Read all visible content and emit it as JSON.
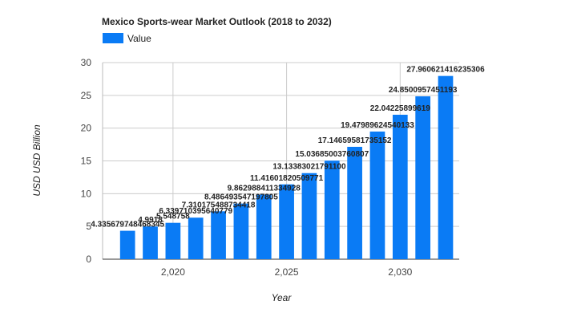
{
  "chart_data": {
    "type": "bar",
    "title": "Mexico Sports-wear Market Outlook (2018 to 2032)",
    "xlabel": "Year",
    "ylabel": "USD USD Billion",
    "legend": {
      "position": "top-left",
      "entries": [
        "Value"
      ]
    },
    "x": [
      2018,
      2019,
      2020,
      2021,
      2022,
      2023,
      2024,
      2025,
      2026,
      2027,
      2028,
      2029,
      2030,
      2031,
      2032
    ],
    "x_tick_values": [
      2020,
      2025,
      2030
    ],
    "x_tick_labels": [
      "2,020",
      "2,025",
      "2,030"
    ],
    "xlim": [
      2016.9,
      2032.6
    ],
    "ylim": [
      0,
      30
    ],
    "y_ticks": [
      0,
      5,
      10,
      15,
      20,
      25,
      30
    ],
    "grid": true,
    "series": [
      {
        "name": "Value",
        "color": "#0a7bf5",
        "values": [
          4.335679748468345,
          4.9918,
          5.548758,
          6.339710395640779,
          7.310175488734418,
          8.486493547197805,
          9.862988411334928,
          11.416018205097714,
          13.133830217911,
          15.03685003760807,
          17.14659581735152,
          19.47989624540133,
          22.04225899619,
          24.8500957451193,
          27.960621416235306
        ],
        "data_labels": [
          "4.335679748468345",
          "4.9918",
          "5.548758",
          "6.339710395640779",
          "7.310175488734418",
          "8.486493547197805",
          "9.862988411334928",
          "11.41601820509771",
          "13.13383021791100",
          "15.03685003760807",
          "17.14659581735152",
          "19.47989624540133",
          "22.04225899619",
          "24.8500957451193",
          "27.960621416235306"
        ]
      }
    ]
  }
}
